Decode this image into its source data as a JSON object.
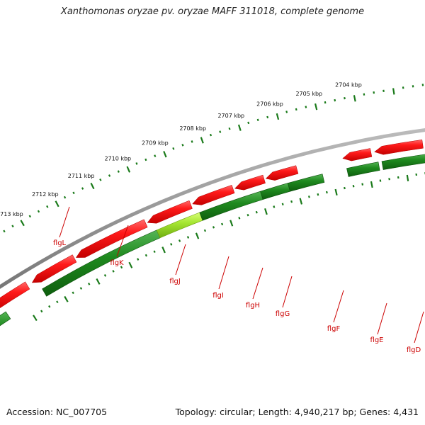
{
  "title": "Xanthomonas oryzae pv. oryzae MAFF 311018, complete genome",
  "accession": "Accession: NC_007705",
  "topology": "Topology: circular; Length: 4,940,217 bp; Genes: 4,431",
  "colors": {
    "backbone": "#8a8a8a",
    "forward_gene": "#ee1111",
    "reverse_gene": "#228b22",
    "highlight_gene": "#a6e632",
    "tick": "#1a7a1a",
    "label": "#cc0000"
  },
  "kbp_ticks": [
    {
      "label": "2713 kbp"
    },
    {
      "label": "2712 kbp"
    },
    {
      "label": "2711 kbp"
    },
    {
      "label": "2710 kbp"
    },
    {
      "label": "2709 kbp"
    },
    {
      "label": "2708 kbp"
    },
    {
      "label": "2707 kbp"
    },
    {
      "label": "2706 kbp"
    },
    {
      "label": "2705 kbp"
    },
    {
      "label": "2704 kbp"
    }
  ],
  "gene_labels": [
    {
      "name": "flgL"
    },
    {
      "name": "flgK"
    },
    {
      "name": "flgJ"
    },
    {
      "name": "flgI"
    },
    {
      "name": "flgH"
    },
    {
      "name": "flgG"
    },
    {
      "name": "flgF"
    },
    {
      "name": "flgE"
    },
    {
      "name": "flgD"
    }
  ]
}
